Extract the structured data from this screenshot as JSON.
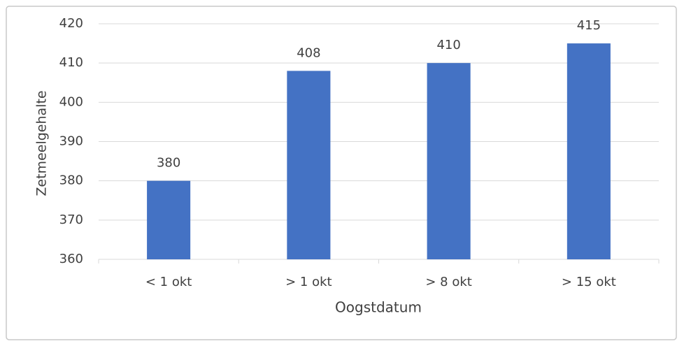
{
  "chart_data": {
    "type": "bar",
    "x_label": "Oogstdatum",
    "y_label": "Zetmeelgehalte",
    "categories": [
      "< 1 okt",
      "> 1 okt",
      "> 8 okt",
      "> 15 okt"
    ],
    "values": [
      380,
      408,
      410,
      415
    ],
    "color": "#4472c4",
    "ylim": [
      360,
      420
    ],
    "yticks": [
      360,
      370,
      380,
      390,
      400,
      410,
      420
    ],
    "grid": true,
    "data_labels": true
  }
}
